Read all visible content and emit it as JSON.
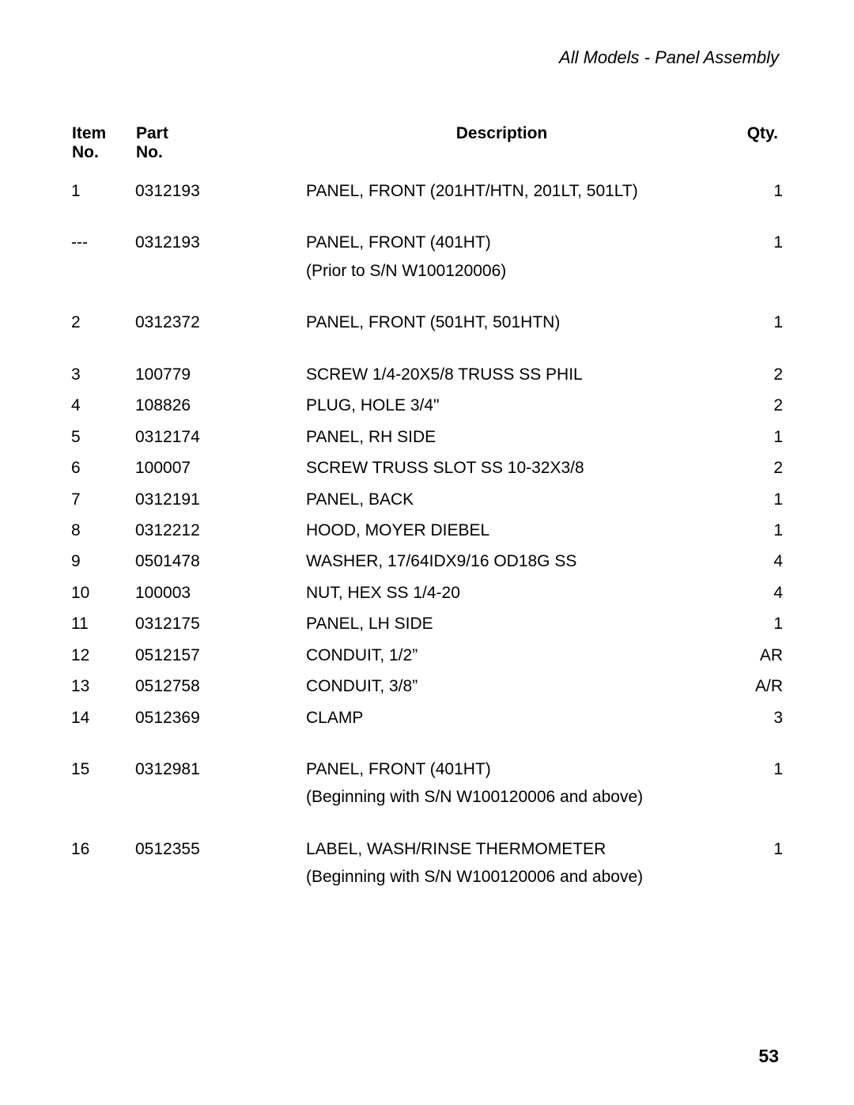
{
  "page": {
    "subtitle": "All Models  -  Panel Assembly",
    "page_number": "53"
  },
  "table": {
    "headers": {
      "item_line1": "Item",
      "item_line2": "No.",
      "part_line1": "Part",
      "part_line2": "No.",
      "description": "Description",
      "qty": "Qty."
    },
    "rows": [
      {
        "item": "1",
        "part": "0312193",
        "desc": "PANEL, FRONT (201HT/HTN, 201LT, 501LT)",
        "qty": "1"
      },
      {
        "gap": true
      },
      {
        "item": "---",
        "part": "0312193",
        "desc": "PANEL, FRONT (401HT)",
        "qty": "1"
      },
      {
        "sub": true,
        "desc": "(Prior to S/N W100120006)"
      },
      {
        "gap": true
      },
      {
        "item": "2",
        "part": "0312372",
        "desc": "PANEL, FRONT (501HT, 501HTN)",
        "qty": "1"
      },
      {
        "gap": true
      },
      {
        "item": "3",
        "part": "100779",
        "desc": "SCREW 1/4-20X5/8 TRUSS SS PHIL",
        "qty": "2"
      },
      {
        "item": "4",
        "part": "108826",
        "desc": "PLUG, HOLE 3/4\"",
        "qty": "2"
      },
      {
        "item": "5",
        "part": "0312174",
        "desc": "PANEL, RH SIDE",
        "qty": "1"
      },
      {
        "item": "6",
        "part": "100007",
        "desc": "SCREW TRUSS SLOT SS 10-32X3/8",
        "qty": "2"
      },
      {
        "item": "7",
        "part": "0312191",
        "desc": "PANEL, BACK",
        "qty": "1"
      },
      {
        "item": "8",
        "part": "0312212",
        "desc": "HOOD, MOYER DIEBEL",
        "qty": "1"
      },
      {
        "item": "9",
        "part": "0501478",
        "desc": "WASHER, 17/64IDX9/16 OD18G SS",
        "qty": "4"
      },
      {
        "item": "10",
        "part": "100003",
        "desc": "NUT, HEX SS 1/4-20",
        "qty": "4"
      },
      {
        "item": "11",
        "part": "0312175",
        "desc": "PANEL, LH SIDE",
        "qty": "1"
      },
      {
        "item": "12",
        "part": "0512157",
        "desc": "CONDUIT, 1/2”",
        "qty": "AR"
      },
      {
        "item": "13",
        "part": "0512758",
        "desc": "CONDUIT, 3/8”",
        "qty": "A/R"
      },
      {
        "item": "14",
        "part": "0512369",
        "desc": "CLAMP",
        "qty": "3"
      },
      {
        "gap": true
      },
      {
        "item": "15",
        "part": "0312981",
        "desc": "PANEL, FRONT (401HT)",
        "qty": "1"
      },
      {
        "sub": true,
        "desc": "(Beginning with S/N W100120006 and above)"
      },
      {
        "gap": true
      },
      {
        "item": "16",
        "part": "0512355",
        "desc": "LABEL, WASH/RINSE THERMOMETER",
        "qty": "1"
      },
      {
        "sub": true,
        "desc": "(Beginning with S/N W100120006 and above)"
      }
    ]
  }
}
